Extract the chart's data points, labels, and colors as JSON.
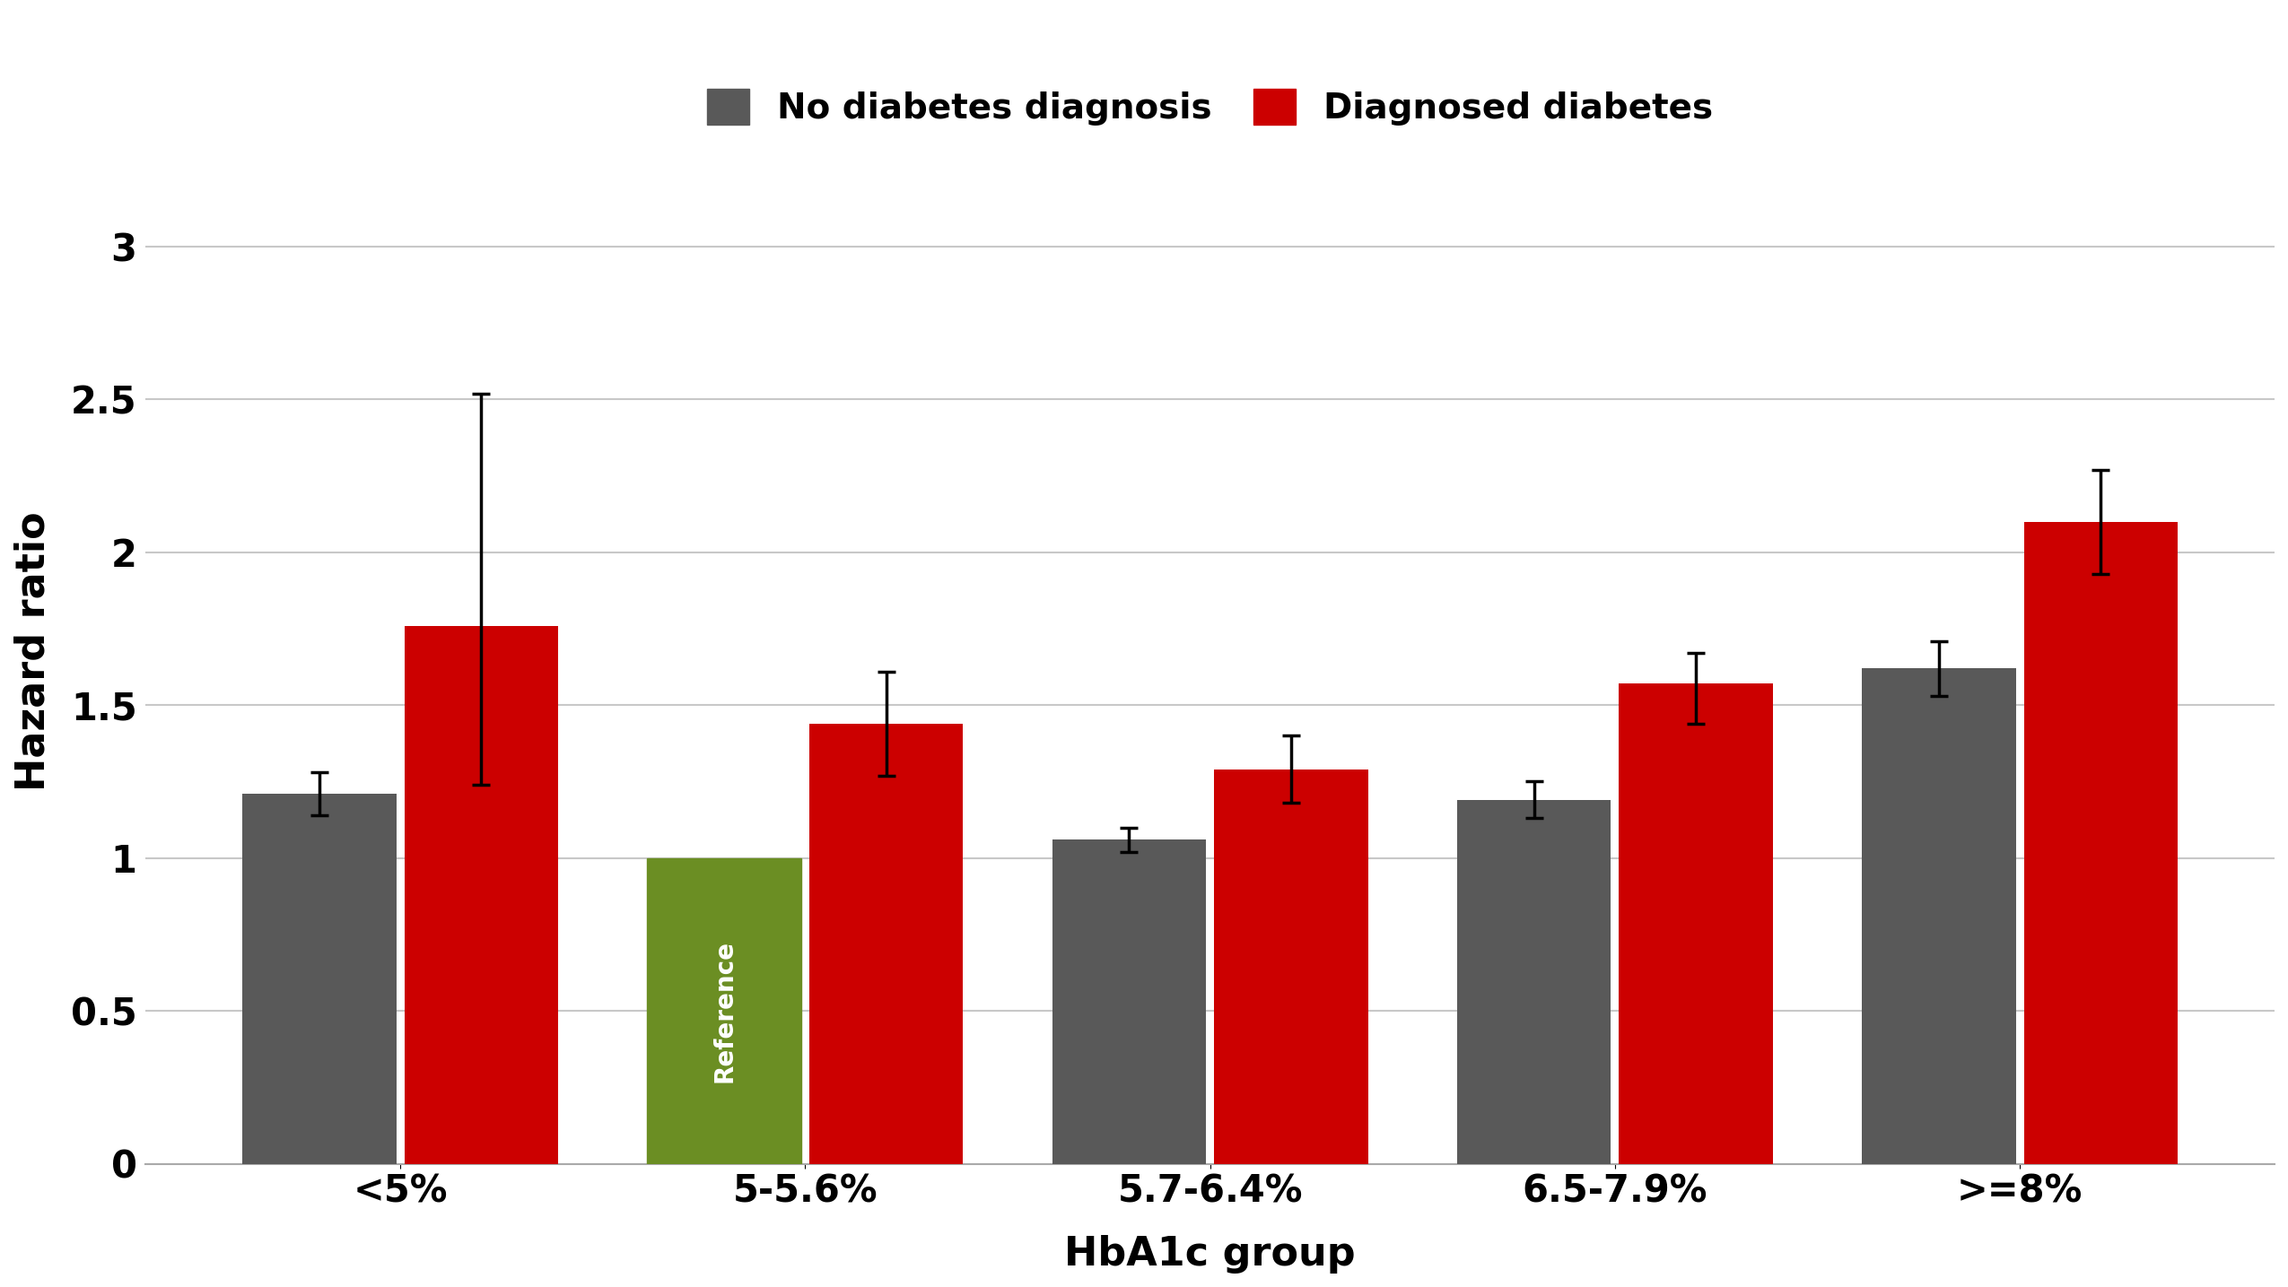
{
  "categories": [
    "<5%",
    "5-5.6%",
    "5.7-6.4%",
    "6.5-7.9%",
    ">=8%"
  ],
  "no_diabetes_values": [
    1.21,
    1.0,
    1.06,
    1.19,
    1.62
  ],
  "no_diabetes_err_low": [
    0.07,
    0.0,
    0.04,
    0.06,
    0.09
  ],
  "no_diabetes_err_high": [
    0.07,
    0.0,
    0.04,
    0.06,
    0.09
  ],
  "diagnosed_values": [
    1.76,
    1.44,
    1.29,
    1.57,
    2.1
  ],
  "diagnosed_err_low": [
    0.52,
    0.17,
    0.11,
    0.13,
    0.17
  ],
  "diagnosed_err_high": [
    0.76,
    0.17,
    0.11,
    0.1,
    0.17
  ],
  "no_diabetes_color": "#595959",
  "diagnosed_color": "#cc0000",
  "reference_color": "#6b8e23",
  "reference_text_color": "#ffffff",
  "bar_width": 0.38,
  "ylabel": "Hazard ratio",
  "xlabel": "HbA1c group",
  "legend_label_no_diabetes": "No diabetes diagnosis",
  "legend_label_diagnosed": "Diagnosed diabetes",
  "ylim": [
    0,
    3.35
  ],
  "yticks": [
    0,
    0.5,
    1.0,
    1.5,
    2.0,
    2.5,
    3.0
  ],
  "ytick_labels": [
    "0",
    "0.5",
    "1",
    "1.5",
    "2",
    "2.5",
    "3"
  ],
  "background_color": "#ffffff",
  "grid_color": "#c8c8c8",
  "fontsize_labels": 32,
  "fontsize_ticks": 30,
  "fontsize_legend": 28,
  "fontsize_reference": 20
}
